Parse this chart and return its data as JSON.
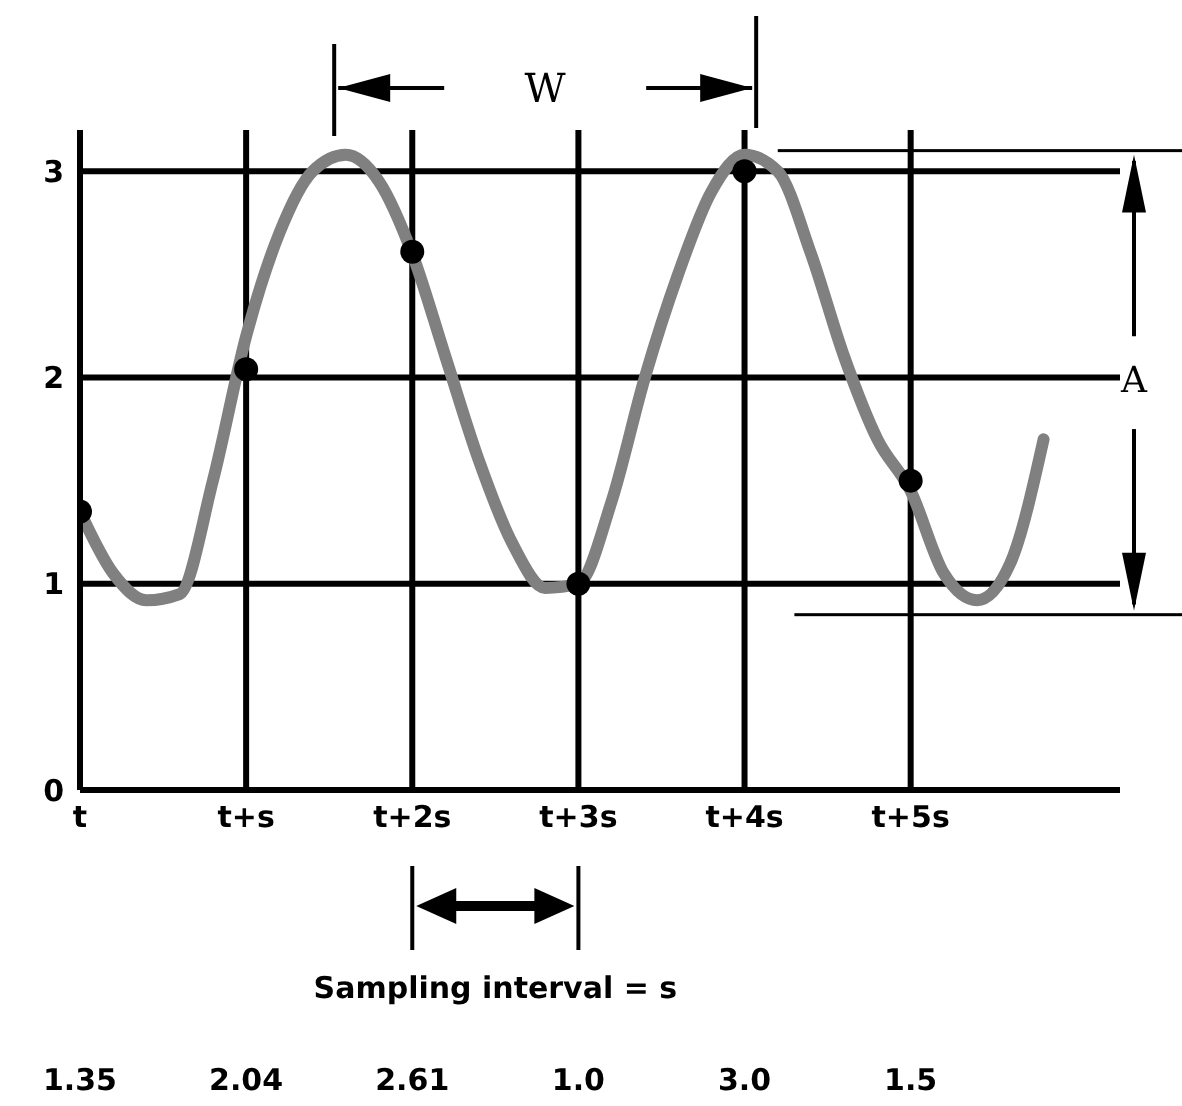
{
  "chart_data": {
    "type": "line",
    "categories": [
      "t",
      null,
      null,
      null,
      null,
      "t+s",
      null,
      null,
      null,
      null,
      "t+2s",
      null,
      null,
      null,
      null,
      "t+3s",
      null,
      null,
      null,
      null,
      "t+4s",
      null,
      null,
      null,
      null,
      "t+5s",
      null,
      null,
      null,
      null
    ],
    "ylim": [
      0,
      3.2
    ],
    "yticks": [
      0,
      1,
      2,
      3
    ],
    "grid": true,
    "marker": "circle",
    "annotations": [
      "W",
      "A",
      "Sampling interval = s"
    ],
    "series": [
      {
        "type": "line",
        "color": "#808080",
        "marker": "none",
        "values": [
          1.35,
          1.05,
          0.92,
          0.95,
          1.5,
          2.2,
          2.7,
          3.0,
          3.08,
          2.95,
          2.6,
          2.1,
          1.6,
          1.2,
          0.98,
          1.0,
          1.4,
          2.0,
          2.5,
          2.9,
          3.08,
          3.0,
          2.6,
          2.1,
          1.7,
          1.45,
          1.05,
          0.92,
          1.1,
          1.7
        ]
      },
      {
        "type": "scatter",
        "color": "#000000",
        "values": [
          1.35,
          null,
          null,
          null,
          null,
          2.04,
          null,
          null,
          null,
          null,
          2.61,
          null,
          null,
          null,
          null,
          1.0,
          null,
          null,
          null,
          null,
          3.0,
          null,
          null,
          null,
          null,
          1.5,
          null,
          null,
          null,
          null
        ],
        "value_labels": [
          "1.35",
          null,
          null,
          null,
          null,
          "2.04",
          null,
          null,
          null,
          null,
          "2.61",
          null,
          null,
          null,
          null,
          "1.0",
          null,
          null,
          null,
          null,
          "3.0",
          null,
          null,
          null,
          null,
          "1.5",
          null,
          null,
          null,
          null
        ]
      }
    ]
  }
}
